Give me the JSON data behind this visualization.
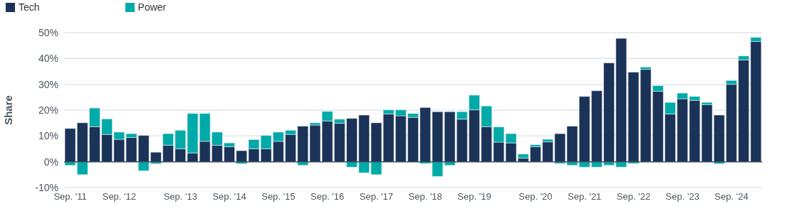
{
  "chart_data": {
    "type": "bar",
    "stacked": true,
    "ylabel": "Share",
    "categories": [
      "Sep. '11",
      null,
      null,
      null,
      "Sep. '12",
      null,
      null,
      null,
      null,
      "Sep. '13",
      null,
      null,
      null,
      "Sep. '14",
      null,
      null,
      null,
      "Sep. '15",
      null,
      null,
      null,
      "Sep. '16",
      null,
      null,
      null,
      "Sep. '17",
      null,
      null,
      null,
      "Sep. '18",
      null,
      null,
      null,
      "Sep. '19",
      null,
      null,
      null,
      null,
      "Sep. '20",
      null,
      null,
      null,
      "Sep. '21",
      null,
      null,
      null,
      "Sep. '22",
      null,
      null,
      null,
      "Sep. '23",
      null,
      null,
      null,
      "Sep. '24",
      null,
      null
    ],
    "series": [
      {
        "name": "Tech",
        "color": "#1b3358",
        "values": [
          12.9,
          15.1,
          13.6,
          10.6,
          8.7,
          9.4,
          10.2,
          3.7,
          6.4,
          5.0,
          3.4,
          7.9,
          6.4,
          5.8,
          4.3,
          5.0,
          5.0,
          7.9,
          10.6,
          13.8,
          14.2,
          15.8,
          14.9,
          16.8,
          18.1,
          15.1,
          18.5,
          17.8,
          17.2,
          21.0,
          19.4,
          19.4,
          16.5,
          20.1,
          13.6,
          7.6,
          7.3,
          1.4,
          5.8,
          7.7,
          10.9,
          13.8,
          25.3,
          27.5,
          38.3,
          47.8,
          34.7,
          35.8,
          27.3,
          18.5,
          24.4,
          23.8,
          22.1,
          18.1,
          30.0,
          39.4,
          46.6
        ]
      },
      {
        "name": "Power",
        "color": "#00aaa8",
        "values": [
          -1.4,
          -5.0,
          7.2,
          6.0,
          2.8,
          1.5,
          -3.5,
          -0.8,
          4.5,
          7.2,
          15.3,
          10.8,
          5.1,
          1.5,
          -0.8,
          3.6,
          5.2,
          3.6,
          1.6,
          -1.4,
          0.9,
          3.7,
          1.6,
          -2.1,
          -4.3,
          -5.0,
          1.6,
          2.3,
          1.5,
          -0.7,
          -5.7,
          -1.4,
          2.9,
          5.7,
          8.0,
          5.9,
          3.6,
          1.6,
          0.8,
          1.0,
          -0.7,
          -1.4,
          -2.1,
          -2.1,
          -1.4,
          -2.1,
          -0.7,
          0.9,
          2.2,
          4.5,
          2.2,
          1.5,
          0.9,
          -0.8,
          1.5,
          1.6,
          1.6
        ]
      }
    ],
    "ylim": [
      -10,
      50
    ],
    "yticks": [
      {
        "value": -10,
        "label": "-10%"
      },
      {
        "value": 0,
        "label": "0%"
      },
      {
        "value": 10,
        "label": "10%"
      },
      {
        "value": 20,
        "label": "20%"
      },
      {
        "value": 30,
        "label": "30%"
      },
      {
        "value": 40,
        "label": "40%"
      },
      {
        "value": 50,
        "label": "50%"
      }
    ],
    "grid": "y",
    "legend": "top left",
    "ref_lines": [
      {
        "axis": "y",
        "value": 0,
        "color": "#3a4a5c"
      }
    ]
  }
}
